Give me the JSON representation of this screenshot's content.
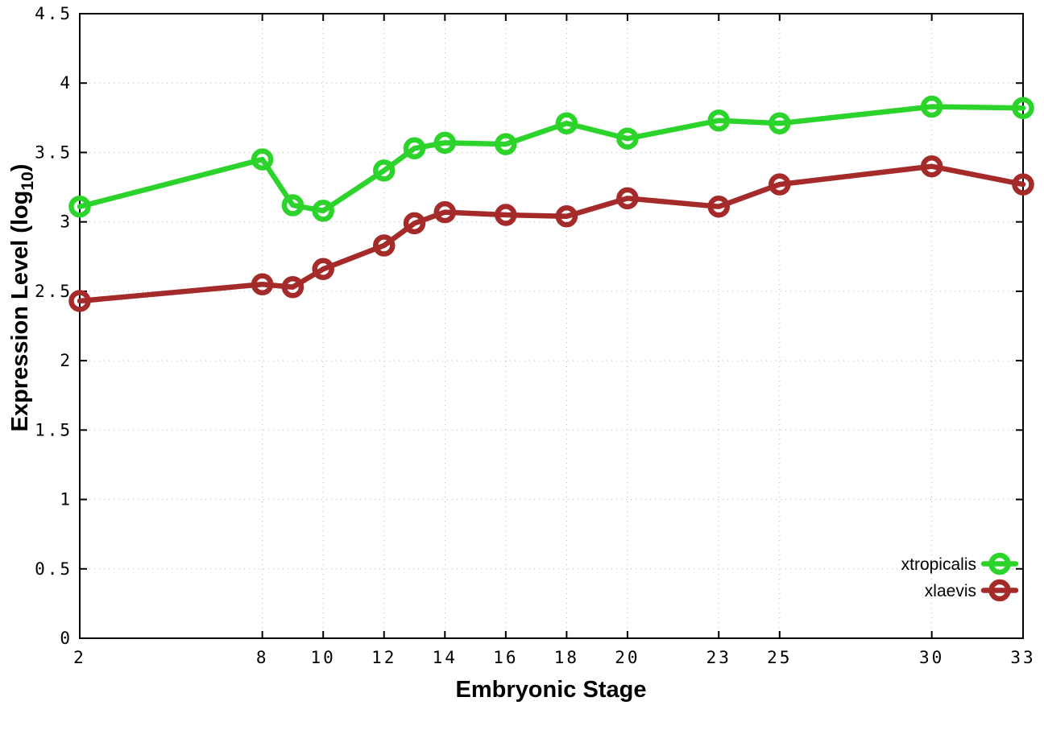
{
  "chart_data": {
    "type": "line",
    "title": "",
    "xlabel": "Embryonic Stage",
    "ylabel": "Expression Level (log10)",
    "ylabel_parts": [
      "Expression Level (log",
      "10",
      ")"
    ],
    "x": [
      2,
      8,
      9,
      10,
      12,
      13,
      14,
      16,
      18,
      20,
      23,
      25,
      30,
      33
    ],
    "series": [
      {
        "name": "xtropicalis",
        "color": "#2bd32b",
        "values": [
          3.11,
          3.45,
          3.12,
          3.08,
          3.37,
          3.53,
          3.57,
          3.56,
          3.71,
          3.6,
          3.73,
          3.71,
          3.83,
          3.82
        ]
      },
      {
        "name": "xlaevis",
        "color": "#a52a2a",
        "values": [
          2.43,
          2.55,
          2.53,
          2.66,
          2.83,
          2.99,
          3.07,
          3.05,
          3.04,
          3.17,
          3.11,
          3.27,
          3.4,
          3.27
        ]
      }
    ],
    "xticks": [
      2,
      8,
      10,
      12,
      14,
      16,
      18,
      20,
      23,
      25,
      30,
      33
    ],
    "yticks": [
      0,
      0.5,
      1,
      1.5,
      2,
      2.5,
      3,
      3.5,
      4,
      4.5
    ],
    "xlim": [
      2,
      33
    ],
    "ylim": [
      0,
      4.5
    ],
    "grid": true,
    "grid_style": "dotted",
    "legend_position": "inside-bottom-right",
    "marker": "open-circle",
    "colors": {
      "axis": "#000000",
      "grid": "#b5b5b5",
      "background": "#ffffff",
      "text": "#000000"
    }
  }
}
